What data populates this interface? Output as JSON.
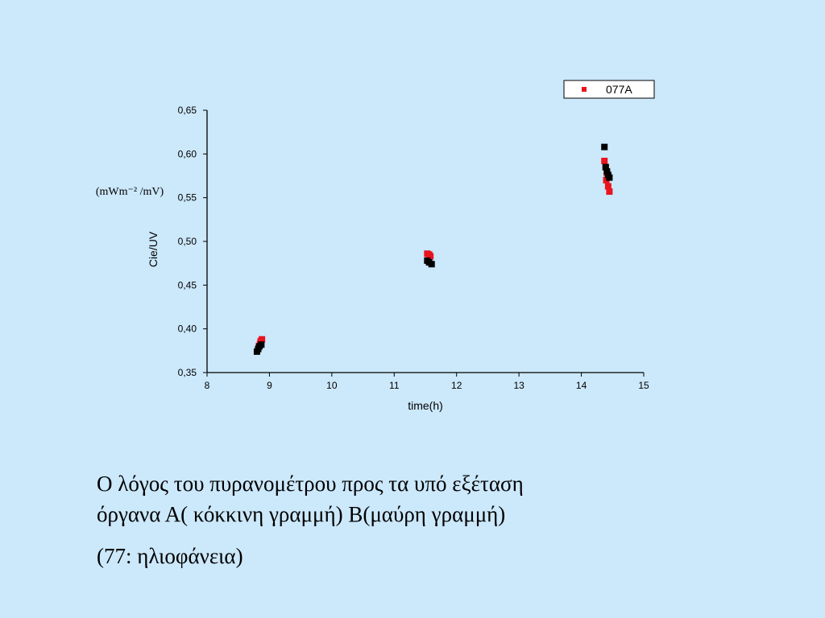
{
  "chart_data": {
    "type": "scatter",
    "x_label": "time(h)",
    "y_label": "Cie/UV",
    "y_unit": "(mWm⁻² /mV)",
    "xlim": [
      8,
      15
    ],
    "xticks": [
      8,
      9,
      10,
      11,
      12,
      13,
      14,
      15
    ],
    "ylim": [
      0.35,
      0.65
    ],
    "yticks": [
      {
        "value": 0.35,
        "label": "0,35"
      },
      {
        "value": 0.4,
        "label": "0,40"
      },
      {
        "value": 0.45,
        "label": "0,45"
      },
      {
        "value": 0.5,
        "label": "0,50"
      },
      {
        "value": 0.55,
        "label": "0,55"
      },
      {
        "value": 0.6,
        "label": "0,60"
      },
      {
        "value": 0.65,
        "label": "0,65"
      }
    ],
    "legend": "top-right",
    "series": [
      {
        "name": "077A",
        "color": "#e8141e",
        "x": [
          8.83,
          8.85,
          8.86,
          8.88,
          11.53,
          11.56,
          11.58,
          14.37,
          14.39,
          14.41,
          14.4,
          14.43,
          14.45
        ],
        "values": [
          0.38,
          0.383,
          0.386,
          0.388,
          0.486,
          0.485,
          0.483,
          0.592,
          0.585,
          0.578,
          0.57,
          0.563,
          0.557
        ]
      },
      {
        "color": "#000000",
        "x": [
          8.8,
          8.82,
          8.84,
          8.87,
          11.53,
          11.56,
          11.6,
          14.37,
          14.39,
          14.41,
          14.43,
          14.45
        ],
        "values": [
          0.374,
          0.377,
          0.38,
          0.382,
          0.478,
          0.476,
          0.474,
          0.608,
          0.585,
          0.58,
          0.576,
          0.573
        ]
      }
    ]
  },
  "slide_text": {
    "lines": [
      "Ο λόγος του πυρανομέτρου προς τα υπό εξέταση",
      "όργανα Α( κόκκινη γραμμή)  Β(μαύρη γραμμή)"
    ],
    "note": "(77: ηλιοφάνεια)"
  }
}
